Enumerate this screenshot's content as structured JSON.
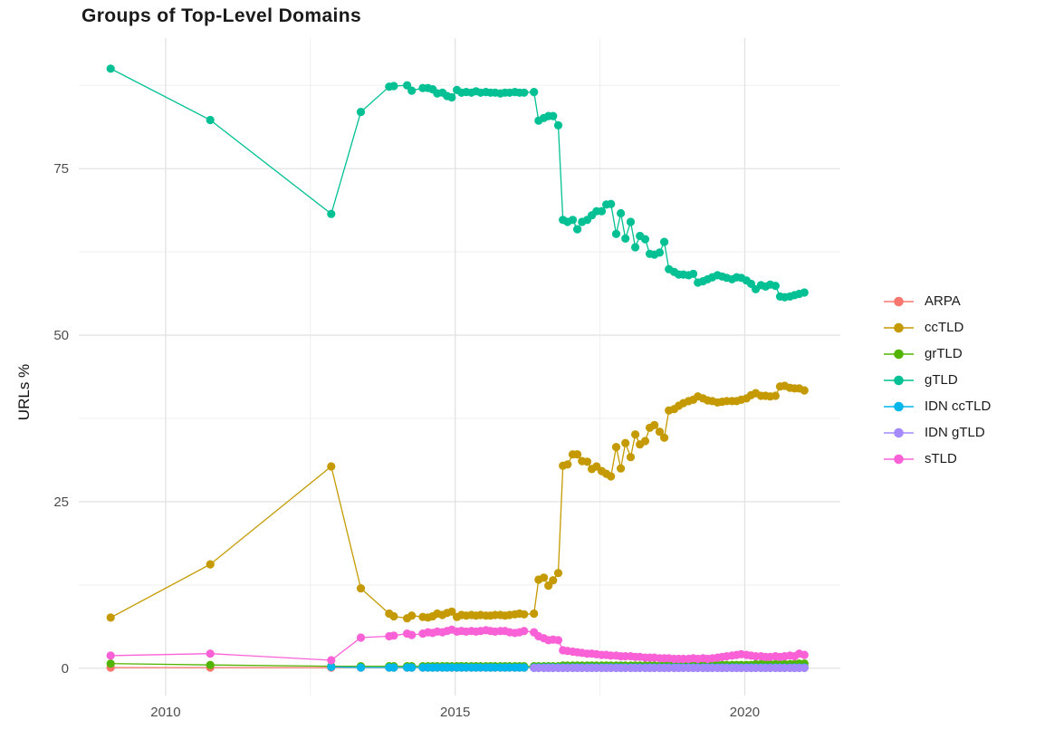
{
  "chart_data": {
    "type": "line",
    "title": "Groups of Top-Level Domains",
    "xlabel": "",
    "ylabel": "URLs %",
    "xlim": [
      2008.5,
      2021.65
    ],
    "ylim": [
      -4.1,
      94.6
    ],
    "grid": {
      "color_major": "#E4E4E4",
      "color_minor": "#EFEFEF",
      "x_major": [
        2010,
        2015,
        2020
      ],
      "x_minor": [
        2012.5,
        2017.5
      ],
      "y_major": [
        0,
        25,
        50,
        75
      ],
      "y_minor": [
        12.5,
        37.5,
        62.5,
        87.5
      ]
    },
    "x_ticks": {
      "values": [
        2010,
        2015,
        2020
      ],
      "labels": [
        "2010",
        "2015",
        "2020"
      ]
    },
    "y_ticks": {
      "values": [
        0,
        25,
        50,
        75
      ],
      "labels": [
        "0",
        "25",
        "50",
        "75"
      ]
    },
    "tick_label_color": "#4d4d4d",
    "legend": {
      "position": "right",
      "items": [
        "ARPA",
        "ccTLD",
        "grTLD",
        "gTLD",
        "IDN ccTLD",
        "IDN gTLD",
        "sTLD"
      ]
    },
    "x": [
      2009.05,
      2010.77,
      2012.86,
      2013.37,
      2013.86,
      2013.94,
      2014.17,
      2014.25,
      2014.44,
      2014.53,
      2014.61,
      2014.69,
      2014.78,
      2014.86,
      2014.94,
      2015.03,
      2015.11,
      2015.19,
      2015.28,
      2015.36,
      2015.44,
      2015.53,
      2015.61,
      2015.69,
      2015.78,
      2015.86,
      2015.94,
      2016.03,
      2016.11,
      2016.19,
      2016.36,
      2016.44,
      2016.53,
      2016.61,
      2016.69,
      2016.78,
      2016.86,
      2016.94,
      2017.03,
      2017.11,
      2017.19,
      2017.28,
      2017.36,
      2017.44,
      2017.53,
      2017.61,
      2017.69,
      2017.78,
      2017.86,
      2017.94,
      2018.03,
      2018.11,
      2018.19,
      2018.28,
      2018.36,
      2018.44,
      2018.53,
      2018.61,
      2018.69,
      2018.78,
      2018.86,
      2018.94,
      2019.03,
      2019.11,
      2019.19,
      2019.28,
      2019.36,
      2019.44,
      2019.53,
      2019.61,
      2019.69,
      2019.78,
      2019.86,
      2019.94,
      2020.03,
      2020.11,
      2020.19,
      2020.28,
      2020.36,
      2020.44,
      2020.53,
      2020.61,
      2020.69,
      2020.78,
      2020.86,
      2020.94,
      2021.03
    ],
    "series": [
      {
        "name": "ARPA",
        "color": "#F8766D",
        "start": 0,
        "y": [
          0.1,
          0.1,
          0.1,
          0.1,
          0.1,
          0.1,
          0.1,
          0.1,
          0.1,
          0.1,
          0.1,
          0.1,
          0.1,
          0.1,
          0.1,
          0.1,
          0.1,
          0.1,
          0.1,
          0.1,
          0.1,
          0.1,
          0.1,
          0.1,
          0.1,
          0.1,
          0.1,
          0.1,
          0.1,
          0.1,
          0.1,
          0.1,
          0.1,
          0.1,
          0.1,
          0.1,
          0.1,
          0.1,
          0.1,
          0.1,
          0.1,
          0.1,
          0.1,
          0.1,
          0.1,
          0.1,
          0.1,
          0.1,
          0.1,
          0.1,
          0.1,
          0.1,
          0.1,
          0.1,
          0.1,
          0.1,
          0.1,
          0.1,
          0.1,
          0.1,
          0.1,
          0.1,
          0.1,
          0.1,
          0.1,
          0.1,
          0.1,
          0.1,
          0.1,
          0.1,
          0.1,
          0.1,
          0.1,
          0.1,
          0.1,
          0.1,
          0.1,
          0.1,
          0.1,
          0.1,
          0.1,
          0.1,
          0.1,
          0.1,
          0.1,
          0.1,
          0.1
        ]
      },
      {
        "name": "ccTLD",
        "color": "#C49A00",
        "start": 0,
        "y": [
          7.6,
          15.6,
          30.3,
          12.0,
          8.2,
          7.8,
          7.5,
          7.9,
          7.7,
          7.6,
          7.8,
          8.2,
          8.0,
          8.3,
          8.5,
          7.7,
          8.0,
          7.9,
          8.0,
          7.9,
          8.0,
          7.9,
          7.9,
          8.0,
          8.0,
          7.9,
          8.0,
          8.1,
          8.2,
          8.1,
          8.2,
          13.3,
          13.6,
          12.4,
          13.2,
          14.3,
          30.4,
          30.6,
          32.1,
          32.1,
          31.1,
          31.0,
          29.9,
          30.3,
          29.6,
          29.2,
          28.8,
          33.2,
          30.0,
          33.8,
          31.7,
          35.1,
          33.6,
          34.1,
          36.1,
          36.5,
          35.5,
          34.6,
          38.7,
          38.9,
          39.4,
          39.8,
          40.1,
          40.3,
          40.8,
          40.5,
          40.2,
          40.1,
          39.9,
          40.0,
          40.1,
          40.1,
          40.1,
          40.3,
          40.5,
          41.0,
          41.3,
          40.9,
          40.9,
          40.8,
          40.9,
          42.3,
          42.4,
          42.1,
          42.0,
          42.0,
          41.7
        ]
      },
      {
        "name": "grTLD",
        "color": "#53B400",
        "start": 0,
        "y": [
          0.7,
          0.5,
          0.3,
          0.3,
          0.3,
          0.3,
          0.3,
          0.3,
          0.3,
          0.3,
          0.3,
          0.3,
          0.3,
          0.3,
          0.3,
          0.3,
          0.3,
          0.3,
          0.3,
          0.3,
          0.3,
          0.3,
          0.3,
          0.3,
          0.3,
          0.3,
          0.3,
          0.3,
          0.3,
          0.3,
          0.3,
          0.3,
          0.3,
          0.3,
          0.3,
          0.3,
          0.4,
          0.4,
          0.4,
          0.4,
          0.4,
          0.4,
          0.4,
          0.4,
          0.4,
          0.4,
          0.4,
          0.4,
          0.4,
          0.4,
          0.4,
          0.4,
          0.4,
          0.4,
          0.4,
          0.4,
          0.4,
          0.4,
          0.5,
          0.5,
          0.5,
          0.5,
          0.5,
          0.5,
          0.5,
          0.5,
          0.5,
          0.5,
          0.5,
          0.5,
          0.5,
          0.5,
          0.5,
          0.5,
          0.5,
          0.5,
          0.6,
          0.6,
          0.6,
          0.6,
          0.6,
          0.6,
          0.6,
          0.6,
          0.6,
          0.7,
          0.7
        ]
      },
      {
        "name": "gTLD",
        "color": "#00C094",
        "start": 0,
        "y": [
          90.0,
          82.3,
          68.2,
          83.5,
          87.3,
          87.4,
          87.5,
          86.7,
          87.1,
          87.1,
          86.9,
          86.3,
          86.4,
          85.9,
          85.7,
          86.8,
          86.4,
          86.5,
          86.4,
          86.6,
          86.4,
          86.5,
          86.4,
          86.4,
          86.3,
          86.4,
          86.4,
          86.5,
          86.4,
          86.4,
          86.5,
          82.2,
          82.6,
          82.9,
          82.9,
          81.5,
          67.3,
          67.0,
          67.3,
          65.9,
          67.0,
          67.3,
          68.0,
          68.6,
          68.6,
          69.6,
          69.7,
          65.2,
          68.3,
          64.5,
          67.0,
          63.2,
          64.9,
          64.4,
          62.2,
          62.1,
          62.4,
          64.0,
          59.9,
          59.5,
          59.1,
          59.1,
          59.0,
          59.2,
          57.9,
          58.1,
          58.4,
          58.7,
          59.0,
          58.8,
          58.6,
          58.4,
          58.7,
          58.6,
          58.2,
          57.7,
          56.9,
          57.5,
          57.3,
          57.6,
          57.4,
          55.8,
          55.7,
          55.8,
          56.0,
          56.2,
          56.4
        ]
      },
      {
        "name": "IDN ccTLD",
        "color": "#00B6EB",
        "start": 2,
        "y": [
          0.2,
          0.12,
          0.12,
          0.12,
          0.12,
          0.12,
          0.12,
          0.12,
          0.12,
          0.12,
          0.12,
          0.12,
          0.12,
          0.12,
          0.12,
          0.12,
          0.12,
          0.12,
          0.12,
          0.12,
          0.12,
          0.12,
          0.12,
          0.12,
          0.12,
          0.12,
          0.12,
          0.12,
          0.12,
          0.12,
          0.12,
          0.12,
          0.12,
          0.12,
          0.12,
          0.12,
          0.12,
          0.12,
          0.12,
          0.12,
          0.12,
          0.12,
          0.12,
          0.12,
          0.12,
          0.12,
          0.12,
          0.12,
          0.12,
          0.12,
          0.12,
          0.12,
          0.12,
          0.12,
          0.12,
          0.12,
          0.12,
          0.12,
          0.12,
          0.12,
          0.12,
          0.12,
          0.12,
          0.12,
          0.12,
          0.12,
          0.12,
          0.12,
          0.12,
          0.12,
          0.12,
          0.12,
          0.12,
          0.12,
          0.12,
          0.12,
          0.12,
          0.12,
          0.12,
          0.12,
          0.12,
          0.12,
          0.12,
          0.12,
          0.12
        ]
      },
      {
        "name": "IDN gTLD",
        "color": "#A58AFF",
        "start": 30,
        "y": [
          0.05,
          0.05,
          0.05,
          0.05,
          0.05,
          0.05,
          0.05,
          0.05,
          0.05,
          0.05,
          0.05,
          0.05,
          0.05,
          0.05,
          0.05,
          0.05,
          0.05,
          0.05,
          0.05,
          0.05,
          0.05,
          0.05,
          0.05,
          0.05,
          0.05,
          0.05,
          0.05,
          0.05,
          0.05,
          0.05,
          0.05,
          0.05,
          0.05,
          0.05,
          0.05,
          0.05,
          0.05,
          0.05,
          0.05,
          0.05,
          0.05,
          0.05,
          0.05,
          0.05,
          0.05,
          0.05,
          0.05,
          0.05,
          0.05,
          0.05,
          0.05,
          0.05,
          0.05,
          0.05,
          0.05,
          0.05,
          0.05
        ]
      },
      {
        "name": "sTLD",
        "color": "#FB61D7",
        "start": 0,
        "y": [
          1.9,
          2.2,
          1.2,
          4.6,
          4.8,
          4.9,
          5.2,
          5.0,
          5.2,
          5.4,
          5.3,
          5.5,
          5.4,
          5.6,
          5.8,
          5.5,
          5.6,
          5.5,
          5.6,
          5.5,
          5.6,
          5.7,
          5.6,
          5.5,
          5.6,
          5.6,
          5.4,
          5.3,
          5.4,
          5.6,
          5.4,
          4.8,
          4.5,
          4.2,
          4.3,
          4.2,
          2.7,
          2.6,
          2.5,
          2.4,
          2.3,
          2.2,
          2.2,
          2.1,
          2.0,
          2.0,
          1.9,
          1.9,
          1.8,
          1.8,
          1.8,
          1.7,
          1.7,
          1.6,
          1.6,
          1.6,
          1.5,
          1.5,
          1.5,
          1.4,
          1.4,
          1.4,
          1.4,
          1.5,
          1.4,
          1.5,
          1.4,
          1.5,
          1.6,
          1.7,
          1.8,
          1.9,
          2.0,
          2.1,
          2.0,
          1.9,
          1.8,
          1.8,
          1.7,
          1.7,
          1.8,
          1.7,
          1.8,
          1.9,
          1.8,
          2.2,
          2.0
        ]
      }
    ]
  }
}
